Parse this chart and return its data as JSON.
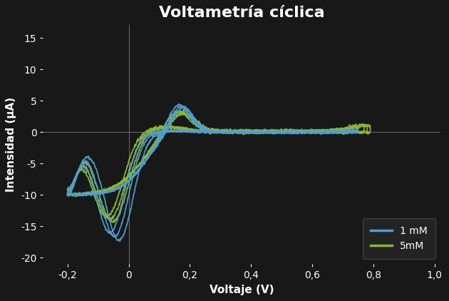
{
  "title": "Voltametría cíclica",
  "xlabel": "Voltaje (V)",
  "ylabel": "Intensidad (μA)",
  "background_color": "#181818",
  "axes_color": "#181818",
  "text_color": "#ffffff",
  "xlim": [
    -0.28,
    1.02
  ],
  "ylim": [
    -21,
    17
  ],
  "xticks": [
    -0.2,
    0.0,
    0.2,
    0.4,
    0.6,
    0.8,
    1.0
  ],
  "yticks": [
    -20,
    -15,
    -10,
    -5,
    0,
    5,
    10,
    15
  ],
  "color_1mM": "#4f9fd4",
  "color_5mM": "#8bb830",
  "legend_labels": [
    "1 mM",
    "5mM"
  ],
  "title_fontsize": 16,
  "label_fontsize": 11,
  "tick_fontsize": 10,
  "n_scans_1mM": 3,
  "n_scans_5mM": 3
}
